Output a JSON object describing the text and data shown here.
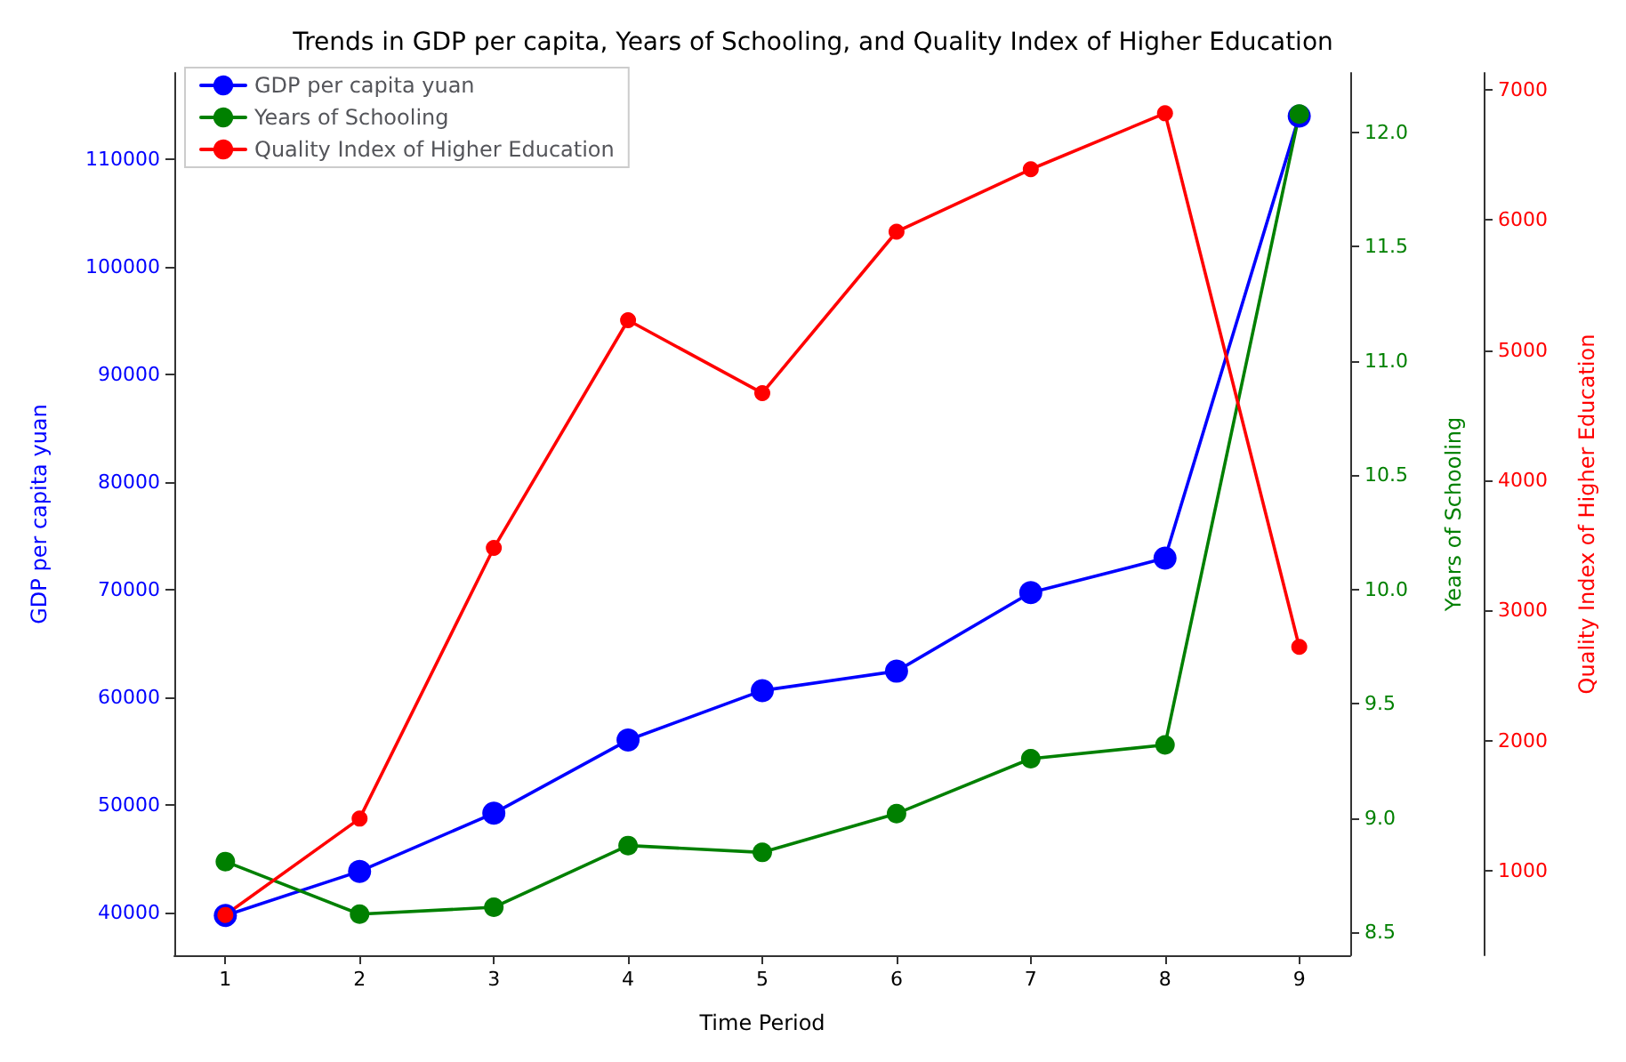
{
  "chart_data": {
    "type": "line",
    "title": "Trends in GDP per capita, Years of Schooling, and Quality Index of Higher Education",
    "xlabel": "Time Period",
    "ylabel": "GDP per capita yuan",
    "y2label": "Years of Schooling",
    "y3label": "Quality Index of Higher Education",
    "x": [
      1,
      2,
      3,
      4,
      5,
      6,
      7,
      8,
      9
    ],
    "series": [
      {
        "name": "GDP per capita yuan",
        "color": "#0000ff",
        "values": [
          39700,
          43800,
          49200,
          56000,
          60600,
          62400,
          69700,
          72900,
          114000
        ]
      },
      {
        "name": "Years of Schooling",
        "color": "#008000",
        "axis": "y2",
        "values": [
          8.81,
          8.58,
          8.61,
          8.88,
          8.85,
          9.02,
          9.26,
          9.32,
          12.08
        ]
      },
      {
        "name": "Quality Index of Higher Education",
        "color": "#ff0000",
        "axis": "y3",
        "values": [
          660,
          1400,
          3480,
          5230,
          4670,
          5910,
          6390,
          6820,
          2720
        ]
      }
    ],
    "xlim": [
      0.62,
      9.38
    ],
    "xticks": [
      1,
      2,
      3,
      4,
      5,
      6,
      7,
      8,
      9
    ],
    "ylim": [
      36000,
      118000
    ],
    "yticks": [
      40000,
      50000,
      60000,
      70000,
      80000,
      90000,
      100000,
      110000
    ],
    "y2lim": [
      8.4,
      12.26
    ],
    "y2ticks": [
      {
        "value": 8.5,
        "label": "8.5"
      },
      {
        "value": 9,
        "label": "9.0"
      },
      {
        "value": 9.5,
        "label": "9.5"
      },
      {
        "value": 10,
        "label": "10.0"
      },
      {
        "value": 10.5,
        "label": "10.5"
      },
      {
        "value": 11,
        "label": "11.0"
      },
      {
        "value": 11.5,
        "label": "11.5"
      },
      {
        "value": 12,
        "label": "12.0"
      }
    ],
    "y3lim": [
      350,
      7130
    ],
    "y3ticks": [
      1000,
      2000,
      3000,
      4000,
      5000,
      6000,
      7000
    ],
    "grid": false,
    "legend": "top left",
    "marker": "circle",
    "line_style": "solid"
  }
}
